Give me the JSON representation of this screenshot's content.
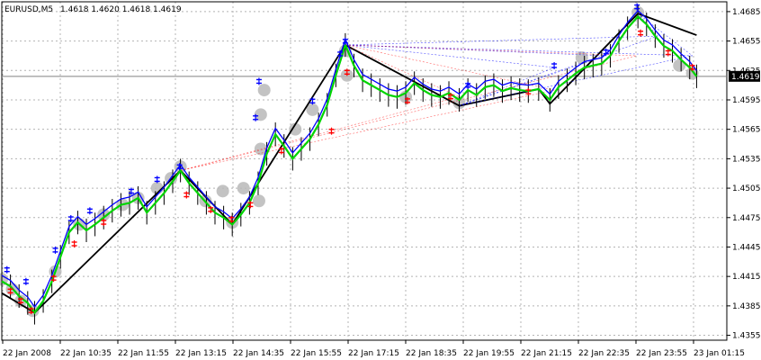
{
  "header": {
    "symbol": "EURUSD,M5",
    "ohlc": "1.4618 1.4620 1.4618 1.4619"
  },
  "current_price_label": "1.4619",
  "colors": {
    "background": "#ffffff",
    "grid": "#b4b4b4",
    "zigzag": "#000000",
    "bull_line": "#00d400",
    "bear_line": "#0000ff",
    "highlight": "#b8b8b8",
    "buy_mark": "#0000ff",
    "sell_mark": "#ff0000",
    "candle_up": "#000000",
    "price_tag_bg": "#000000",
    "price_tag_fg": "#ffffff"
  },
  "chart_data": {
    "type": "line",
    "title": "EURUSD,M5",
    "xlabel": "",
    "ylabel": "",
    "ylim": [
      1.435,
      1.4695
    ],
    "grid": true,
    "x_ticks": [
      "22 Jan 2008",
      "22 Jan 10:35",
      "22 Jan 11:55",
      "22 Jan 13:15",
      "22 Jan 14:35",
      "22 Jan 15:55",
      "22 Jan 17:15",
      "22 Jan 18:35",
      "22 Jan 19:55",
      "22 Jan 21:15",
      "22 Jan 22:35",
      "22 Jan 23:55",
      "23 Jan 01:15"
    ],
    "y_ticks": [
      1.4355,
      1.4385,
      1.4415,
      1.4445,
      1.4475,
      1.4505,
      1.4535,
      1.4565,
      1.4595,
      1.4625,
      1.4655,
      1.4685
    ],
    "current_price": 1.4619,
    "series": [
      {
        "name": "",
        "style": "zigzag",
        "x": [
          0,
          38,
          207,
          267,
          398,
          530,
          622,
          635,
          737,
          805
        ],
        "y": [
          1.4398,
          1.4378,
          1.4523,
          1.4468,
          1.4651,
          1.4589,
          1.4606,
          1.4591,
          1.4683,
          1.4661
        ]
      },
      {
        "name": "",
        "style": "price",
        "x": [
          0,
          10,
          20,
          30,
          38,
          48,
          58,
          68,
          78,
          88,
          98,
          108,
          118,
          128,
          138,
          148,
          158,
          168,
          178,
          188,
          198,
          207,
          217,
          227,
          237,
          247,
          257,
          267,
          277,
          287,
          297,
          307,
          317,
          327,
          337,
          347,
          357,
          367,
          377,
          387,
          398,
          408,
          418,
          428,
          438,
          448,
          458,
          468,
          478,
          488,
          498,
          508,
          518,
          530,
          540,
          550,
          560,
          570,
          580,
          590,
          600,
          610,
          622,
          635,
          645,
          655,
          665,
          675,
          685,
          695,
          705,
          715,
          725,
          737,
          747,
          757,
          767,
          777,
          787,
          797,
          805
        ],
        "y": [
          1.441,
          1.4405,
          1.4395,
          1.4388,
          1.4378,
          1.439,
          1.441,
          1.4435,
          1.446,
          1.447,
          1.4462,
          1.4468,
          1.4475,
          1.4482,
          1.4488,
          1.449,
          1.4495,
          1.448,
          1.449,
          1.45,
          1.4512,
          1.4523,
          1.451,
          1.45,
          1.449,
          1.448,
          1.4475,
          1.4468,
          1.4478,
          1.449,
          1.451,
          1.454,
          1.456,
          1.4548,
          1.4535,
          1.4545,
          1.4555,
          1.457,
          1.459,
          1.462,
          1.4651,
          1.463,
          1.4615,
          1.461,
          1.4605,
          1.46,
          1.4598,
          1.4602,
          1.4612,
          1.4605,
          1.46,
          1.4598,
          1.4602,
          1.4595,
          1.4605,
          1.46,
          1.4608,
          1.461,
          1.4604,
          1.4607,
          1.4605,
          1.4604,
          1.4606,
          1.4595,
          1.4608,
          1.4615,
          1.4622,
          1.4628,
          1.463,
          1.4632,
          1.464,
          1.4655,
          1.4668,
          1.468,
          1.4672,
          1.466,
          1.465,
          1.4645,
          1.4636,
          1.4628,
          1.4619
        ]
      }
    ],
    "highlight_points": [
      {
        "x": 0,
        "y": 1.4412
      },
      {
        "x": 12,
        "y": 1.4402
      },
      {
        "x": 22,
        "y": 1.439
      },
      {
        "x": 36,
        "y": 1.438
      },
      {
        "x": 62,
        "y": 1.442
      },
      {
        "x": 90,
        "y": 1.4468
      },
      {
        "x": 118,
        "y": 1.4478
      },
      {
        "x": 140,
        "y": 1.4488
      },
      {
        "x": 158,
        "y": 1.4495
      },
      {
        "x": 180,
        "y": 1.4505
      },
      {
        "x": 196,
        "y": 1.4515
      },
      {
        "x": 207,
        "y": 1.4527
      },
      {
        "x": 236,
        "y": 1.4492
      },
      {
        "x": 256,
        "y": 1.4502
      },
      {
        "x": 267,
        "y": 1.447
      },
      {
        "x": 280,
        "y": 1.4505
      },
      {
        "x": 298,
        "y": 1.4492
      },
      {
        "x": 300,
        "y": 1.458
      },
      {
        "x": 300,
        "y": 1.4545
      },
      {
        "x": 304,
        "y": 1.4605
      },
      {
        "x": 340,
        "y": 1.4565
      },
      {
        "x": 360,
        "y": 1.4585
      },
      {
        "x": 398,
        "y": 1.4645
      },
      {
        "x": 400,
        "y": 1.462
      },
      {
        "x": 468,
        "y": 1.4598
      },
      {
        "x": 530,
        "y": 1.4592
      },
      {
        "x": 672,
        "y": 1.4638
      },
      {
        "x": 737,
        "y": 1.4684
      },
      {
        "x": 785,
        "y": 1.463
      },
      {
        "x": 800,
        "y": 1.4622
      }
    ],
    "sell_marks": [
      {
        "x": 10,
        "y": 1.4402
      },
      {
        "x": 22,
        "y": 1.4392
      },
      {
        "x": 34,
        "y": 1.4382
      },
      {
        "x": 60,
        "y": 1.4415
      },
      {
        "x": 84,
        "y": 1.445
      },
      {
        "x": 118,
        "y": 1.4472
      },
      {
        "x": 214,
        "y": 1.45
      },
      {
        "x": 242,
        "y": 1.4485
      },
      {
        "x": 266,
        "y": 1.4475
      },
      {
        "x": 288,
        "y": 1.449
      },
      {
        "x": 324,
        "y": 1.4545
      },
      {
        "x": 382,
        "y": 1.4565
      },
      {
        "x": 400,
        "y": 1.4625
      },
      {
        "x": 470,
        "y": 1.4596
      },
      {
        "x": 520,
        "y": 1.46
      },
      {
        "x": 610,
        "y": 1.4605
      },
      {
        "x": 740,
        "y": 1.4665
      },
      {
        "x": 772,
        "y": 1.4645
      },
      {
        "x": 800,
        "y": 1.463
      }
    ],
    "buy_marks": [
      {
        "x": 6,
        "y": 1.442
      },
      {
        "x": 28,
        "y": 1.4408
      },
      {
        "x": 62,
        "y": 1.444
      },
      {
        "x": 80,
        "y": 1.4472
      },
      {
        "x": 102,
        "y": 1.448
      },
      {
        "x": 150,
        "y": 1.45
      },
      {
        "x": 180,
        "y": 1.4512
      },
      {
        "x": 206,
        "y": 1.4525
      },
      {
        "x": 294,
        "y": 1.4575
      },
      {
        "x": 298,
        "y": 1.4612
      },
      {
        "x": 360,
        "y": 1.4592
      },
      {
        "x": 392,
        "y": 1.464
      },
      {
        "x": 398,
        "y": 1.4653
      },
      {
        "x": 540,
        "y": 1.4608
      },
      {
        "x": 640,
        "y": 1.4628
      },
      {
        "x": 700,
        "y": 1.4642
      },
      {
        "x": 736,
        "y": 1.4688
      }
    ]
  }
}
